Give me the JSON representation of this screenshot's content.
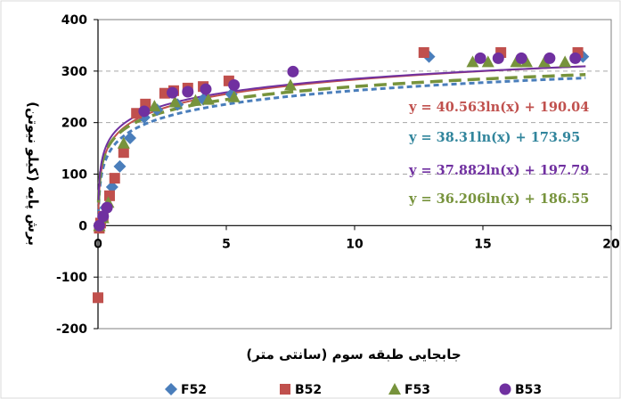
{
  "chart_data": {
    "type": "scatter",
    "xlabel": "جابجایی طبقه سوم (سانتی متر)",
    "ylabel": "برش پایه (کیلو نیوتن)",
    "xlim": [
      0,
      20
    ],
    "ylim": [
      -200,
      400
    ],
    "x_ticks": [
      0,
      5,
      10,
      15,
      20
    ],
    "y_ticks": [
      -200,
      -100,
      0,
      100,
      200,
      300,
      400
    ],
    "grid": {
      "horizontal": true,
      "vertical": false,
      "style": "dashed"
    },
    "legend_position": "bottom",
    "series": [
      {
        "name": "F52",
        "marker": "diamond",
        "color": "#4a7ebb",
        "points": [
          [
            0.05,
            0
          ],
          [
            0.15,
            10
          ],
          [
            0.3,
            35
          ],
          [
            0.55,
            75
          ],
          [
            0.85,
            115
          ],
          [
            1.25,
            170
          ],
          [
            1.8,
            210
          ],
          [
            2.3,
            225
          ],
          [
            3.1,
            235
          ],
          [
            4.1,
            245
          ],
          [
            5.2,
            255
          ],
          [
            12.9,
            328
          ],
          [
            18.9,
            328
          ]
        ]
      },
      {
        "name": "B52",
        "marker": "square",
        "color": "#c0504d",
        "points": [
          [
            0,
            -140
          ],
          [
            0.05,
            -5
          ],
          [
            0.1,
            5
          ],
          [
            0.2,
            18
          ],
          [
            0.45,
            58
          ],
          [
            0.65,
            92
          ],
          [
            1.0,
            142
          ],
          [
            1.5,
            218
          ],
          [
            1.85,
            236
          ],
          [
            2.6,
            257
          ],
          [
            2.95,
            262
          ],
          [
            3.5,
            267
          ],
          [
            4.1,
            270
          ],
          [
            5.1,
            281
          ],
          [
            12.7,
            336
          ],
          [
            15.7,
            336
          ],
          [
            18.7,
            336
          ]
        ]
      },
      {
        "name": "F53",
        "marker": "triangle",
        "color": "#77933c",
        "points": [
          [
            0.05,
            0
          ],
          [
            0.2,
            15
          ],
          [
            0.4,
            45
          ],
          [
            1.0,
            160
          ],
          [
            2.2,
            232
          ],
          [
            3.0,
            240
          ],
          [
            3.8,
            243
          ],
          [
            4.3,
            245
          ],
          [
            5.3,
            250
          ],
          [
            7.5,
            273
          ],
          [
            14.6,
            318
          ],
          [
            15.2,
            318
          ],
          [
            16.3,
            318
          ],
          [
            16.7,
            318
          ],
          [
            17.4,
            318
          ],
          [
            18.2,
            318
          ]
        ]
      },
      {
        "name": "B53",
        "marker": "circle",
        "color": "#7030a0",
        "points": [
          [
            0.05,
            0
          ],
          [
            0.2,
            18
          ],
          [
            0.35,
            35
          ],
          [
            1.8,
            222
          ],
          [
            2.9,
            258
          ],
          [
            3.5,
            260
          ],
          [
            4.2,
            265
          ],
          [
            5.3,
            273
          ],
          [
            7.6,
            299
          ],
          [
            14.9,
            325
          ],
          [
            15.6,
            325
          ],
          [
            16.5,
            325
          ],
          [
            17.6,
            325
          ],
          [
            18.6,
            325
          ]
        ]
      }
    ],
    "trendlines": [
      {
        "series": "F52",
        "a": 38.31,
        "b": 173.95,
        "style": "short-dash",
        "color": "#4a7ebb",
        "label": "y = 38.31ln(x) + 173.95",
        "label_color": "#31859c"
      },
      {
        "series": "B52",
        "a": 40.563,
        "b": 190.04,
        "style": "solid",
        "color": "#c0504d",
        "label": "y = 40.563ln(x) + 190.04",
        "label_color": "#c0504d"
      },
      {
        "series": "F53",
        "a": 36.206,
        "b": 186.55,
        "style": "long-dash",
        "color": "#77933c",
        "label": "y = 36.206ln(x) + 186.55",
        "label_color": "#77933c"
      },
      {
        "series": "B53",
        "a": 37.882,
        "b": 197.79,
        "style": "solid",
        "color": "#7030a0",
        "label": "y = 37.882ln(x) + 197.79",
        "label_color": "#7030a0"
      }
    ],
    "equation_order": [
      "B52",
      "F52",
      "B53",
      "F53"
    ]
  }
}
